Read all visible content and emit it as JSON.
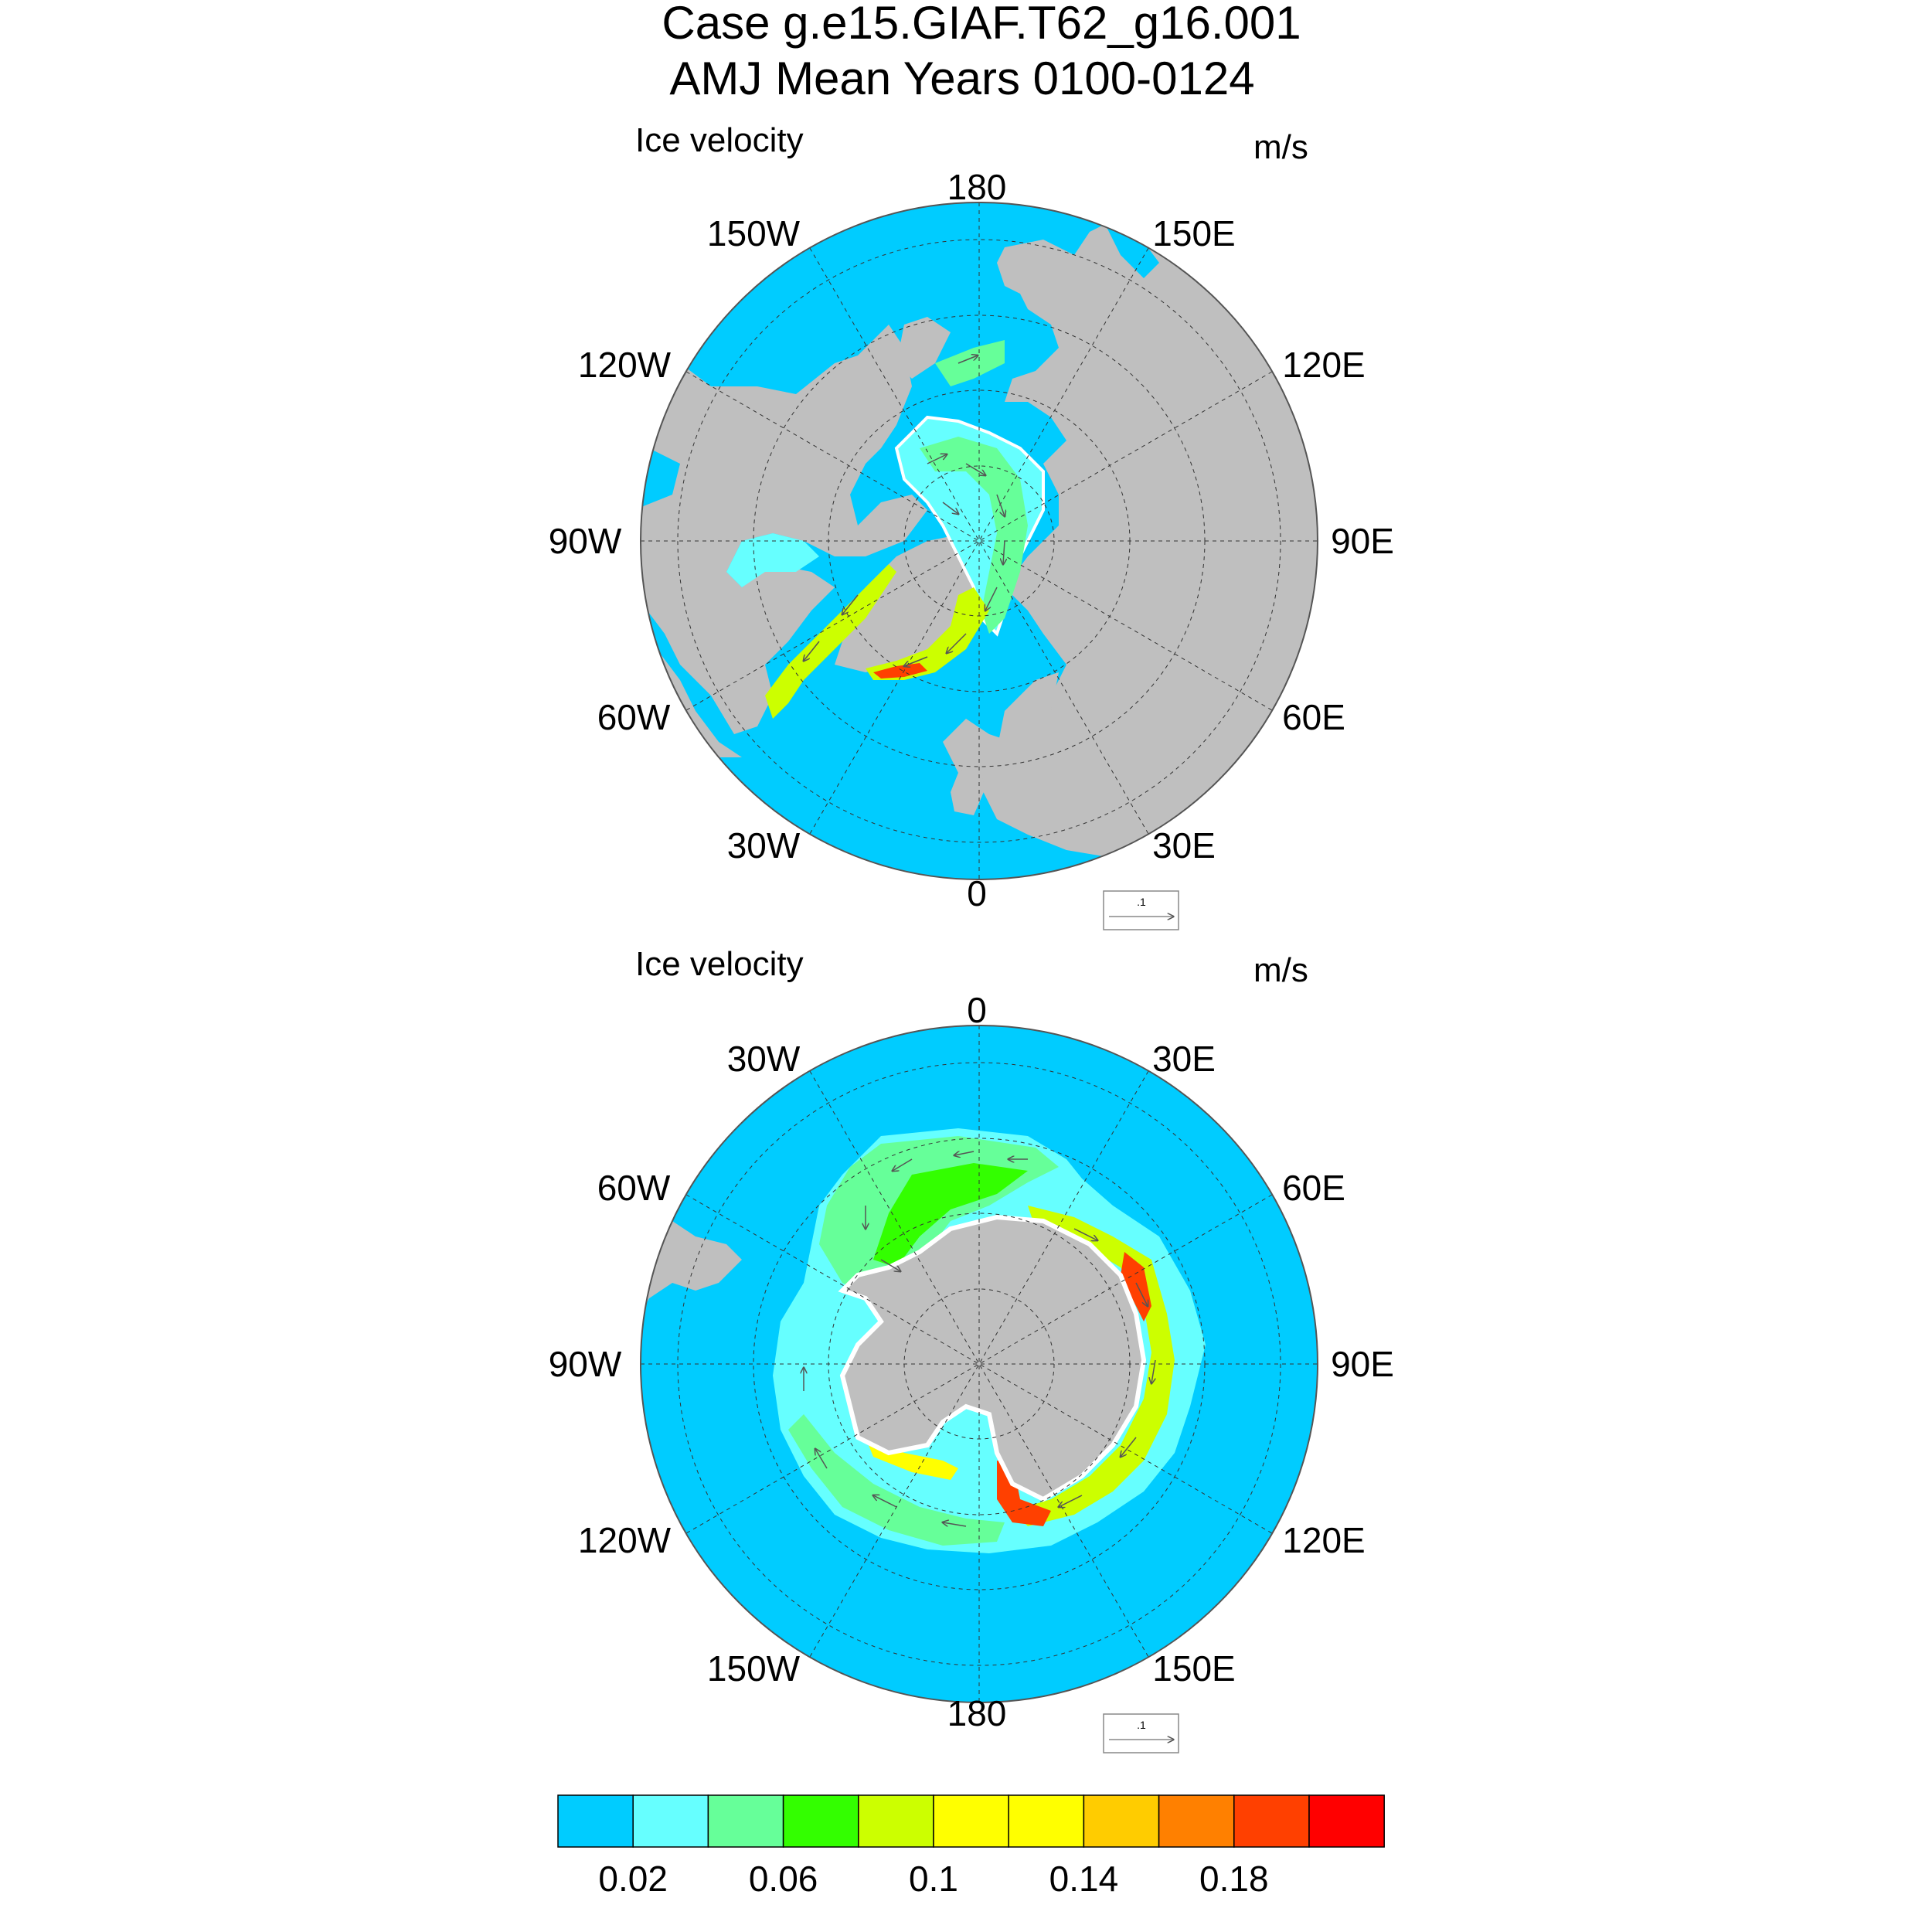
{
  "title": "Case g.e15.GIAF.T62_g16.001",
  "subtitle": "AMJ Mean   Years 0100-0124",
  "panels": [
    {
      "hemisphere": "north",
      "left_label": "Ice velocity",
      "right_label": "m/s",
      "reference_vector": ".1",
      "longitude_labels": {
        "top": "180",
        "upper_left": "150W",
        "upper_right": "150E",
        "mid_upper_left": "120W",
        "mid_upper_right": "120E",
        "left": "90W",
        "right": "90E",
        "mid_lower_left": "60W",
        "mid_lower_right": "60E",
        "lower_left": "30W",
        "lower_right": "30E",
        "bottom": "0"
      }
    },
    {
      "hemisphere": "south",
      "left_label": "Ice velocity",
      "right_label": "m/s",
      "reference_vector": ".1",
      "longitude_labels": {
        "top": "0",
        "upper_left": "30W",
        "upper_right": "30E",
        "mid_upper_left": "60W",
        "mid_upper_right": "60E",
        "left": "90W",
        "right": "90E",
        "mid_lower_left": "120W",
        "mid_lower_right": "120E",
        "lower_left": "150W",
        "lower_right": "150E",
        "bottom": "180"
      }
    }
  ],
  "colorbar": {
    "colors": [
      "#00ccff",
      "#66ffff",
      "#66ff99",
      "#33ff00",
      "#ccff00",
      "#ffff00",
      "#ffff00",
      "#ffcc00",
      "#ff8000",
      "#ff4000",
      "#ff0000"
    ],
    "tick_labels": [
      "0.02",
      "0.06",
      "0.1",
      "0.14",
      "0.18"
    ]
  },
  "colors": {
    "ocean": "#00ccff",
    "land": "#bfbfbf",
    "ice_edge": "#ffffff"
  }
}
